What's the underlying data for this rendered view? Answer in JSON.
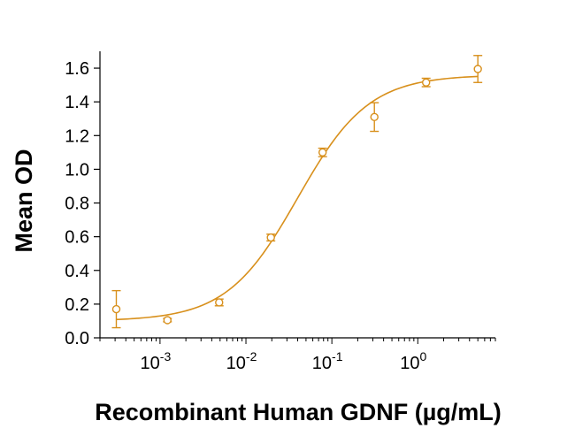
{
  "chart_data": {
    "type": "scatter",
    "xlabel": "Recombinant Human GDNF (µg/mL)",
    "ylabel": "Mean OD",
    "x_scale": "log",
    "xlim": [
      0.0002,
      8
    ],
    "ylim": [
      0,
      1.7
    ],
    "x_ticks": [
      {
        "value": 0.001,
        "base": "10",
        "exp": "-3"
      },
      {
        "value": 0.01,
        "base": "10",
        "exp": "-2"
      },
      {
        "value": 0.1,
        "base": "10",
        "exp": "-1"
      },
      {
        "value": 1,
        "base": "10",
        "exp": "0"
      }
    ],
    "y_ticks": [
      "0.0",
      "0.2",
      "0.4",
      "0.6",
      "0.8",
      "1.0",
      "1.2",
      "1.4",
      "1.6"
    ],
    "series_color": "#D8901C",
    "points": [
      {
        "x": 0.00031,
        "y": 0.17,
        "err": 0.11
      },
      {
        "x": 0.00122,
        "y": 0.105,
        "err": 0.01
      },
      {
        "x": 0.00488,
        "y": 0.21,
        "err": 0.02
      },
      {
        "x": 0.0195,
        "y": 0.595,
        "err": 0.02
      },
      {
        "x": 0.078,
        "y": 1.1,
        "err": 0.025
      },
      {
        "x": 0.3125,
        "y": 1.31,
        "err": 0.085
      },
      {
        "x": 1.25,
        "y": 1.515,
        "err": 0.025
      },
      {
        "x": 5,
        "y": 1.595,
        "err": 0.08
      }
    ],
    "fit": {
      "model": "4PL",
      "bottom": 0.1,
      "top": 1.56,
      "ec50": 0.04,
      "hill": 1.05
    },
    "grid": false
  }
}
